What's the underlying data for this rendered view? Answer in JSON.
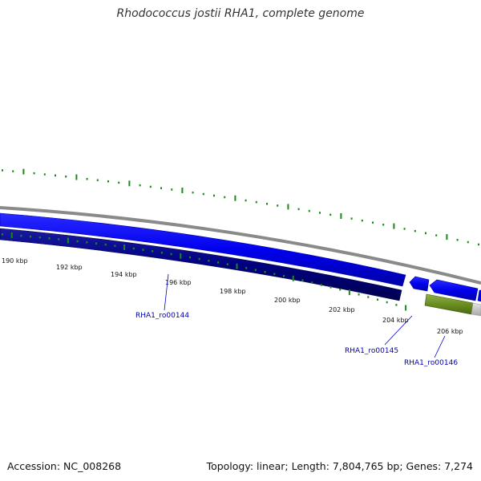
{
  "title": "Rhodococcus jostii RHA1, complete genome",
  "footer": {
    "accession": "Accession: NC_008268",
    "summary": "Topology: linear; Length: 7,804,765 bp; Genes: 7,274"
  },
  "scale": {
    "tick_labels": [
      "190 kbp",
      "192 kbp",
      "194 kbp",
      "196 kbp",
      "198 kbp",
      "200 kbp",
      "202 kbp",
      "204 kbp",
      "206 kbp"
    ]
  },
  "genes": [
    {
      "label": "RHA1_ro00144"
    },
    {
      "label": "RHA1_ro00145"
    },
    {
      "label": "RHA1_ro00146"
    }
  ],
  "colors": {
    "forward_cds": "#0000ee",
    "reverse_cds": "#000080",
    "backbone": "#8a8a8a",
    "gc_dots": "#1a8a1a",
    "rna_feature": "#6b8e23",
    "label_blue": "#0000aa",
    "grey_feature": "#c8c8c8"
  }
}
